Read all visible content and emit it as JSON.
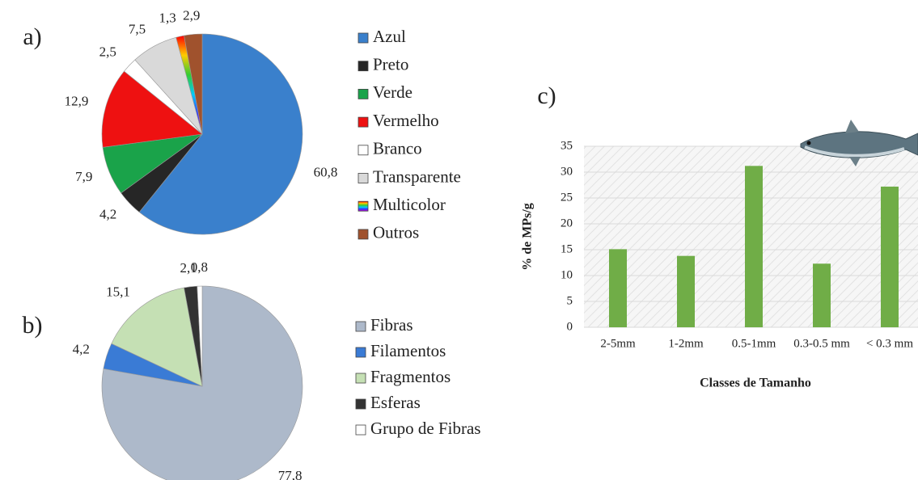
{
  "chart_data": [
    {
      "type": "pie",
      "panel_label": "a)",
      "categories": [
        "Azul",
        "Preto",
        "Verde",
        "Vermelho",
        "Branco",
        "Transparente",
        "Multicolor",
        "Outros"
      ],
      "values": [
        60.8,
        4.2,
        7.9,
        12.9,
        2.5,
        7.5,
        1.3,
        2.9
      ],
      "value_labels": [
        "60,8",
        "4,2",
        "7,9",
        "12,9",
        "2,5",
        "7,5",
        "1,3",
        "2,9"
      ],
      "colors": [
        "#3a80cc",
        "#262626",
        "#1aa34a",
        "#ee1111",
        "#ffffff",
        "#d9d9d9",
        "url(#rainbow)",
        "#a0522d"
      ]
    },
    {
      "type": "pie",
      "panel_label": "b)",
      "categories": [
        "Fibras",
        "Filamentos",
        "Fragmentos",
        "Esferas",
        "Grupo de Fibras"
      ],
      "values": [
        77.8,
        4.2,
        15.1,
        2.1,
        0.8
      ],
      "value_labels": [
        "77,8",
        "4,2",
        "15,1",
        "2,1",
        "0,8"
      ],
      "colors": [
        "#adb9ca",
        "#3a7bd5",
        "#c5e0b4",
        "#333333",
        "#ffffff"
      ]
    },
    {
      "type": "bar",
      "panel_label": "c)",
      "x_label": "Classes de Tamanho",
      "y_label": "% de MPs/g",
      "categories": [
        "2-5mm",
        "1-2mm",
        "0.5-1mm",
        "0.3-0.5 mm",
        "< 0.3 mm"
      ],
      "values": [
        15.1,
        13.8,
        31.2,
        12.3,
        27.2
      ],
      "color": "#70ad47",
      "ylim": [
        0,
        35
      ],
      "yticks": [
        0,
        5,
        10,
        15,
        20,
        25,
        30,
        35
      ],
      "grid": true
    }
  ]
}
